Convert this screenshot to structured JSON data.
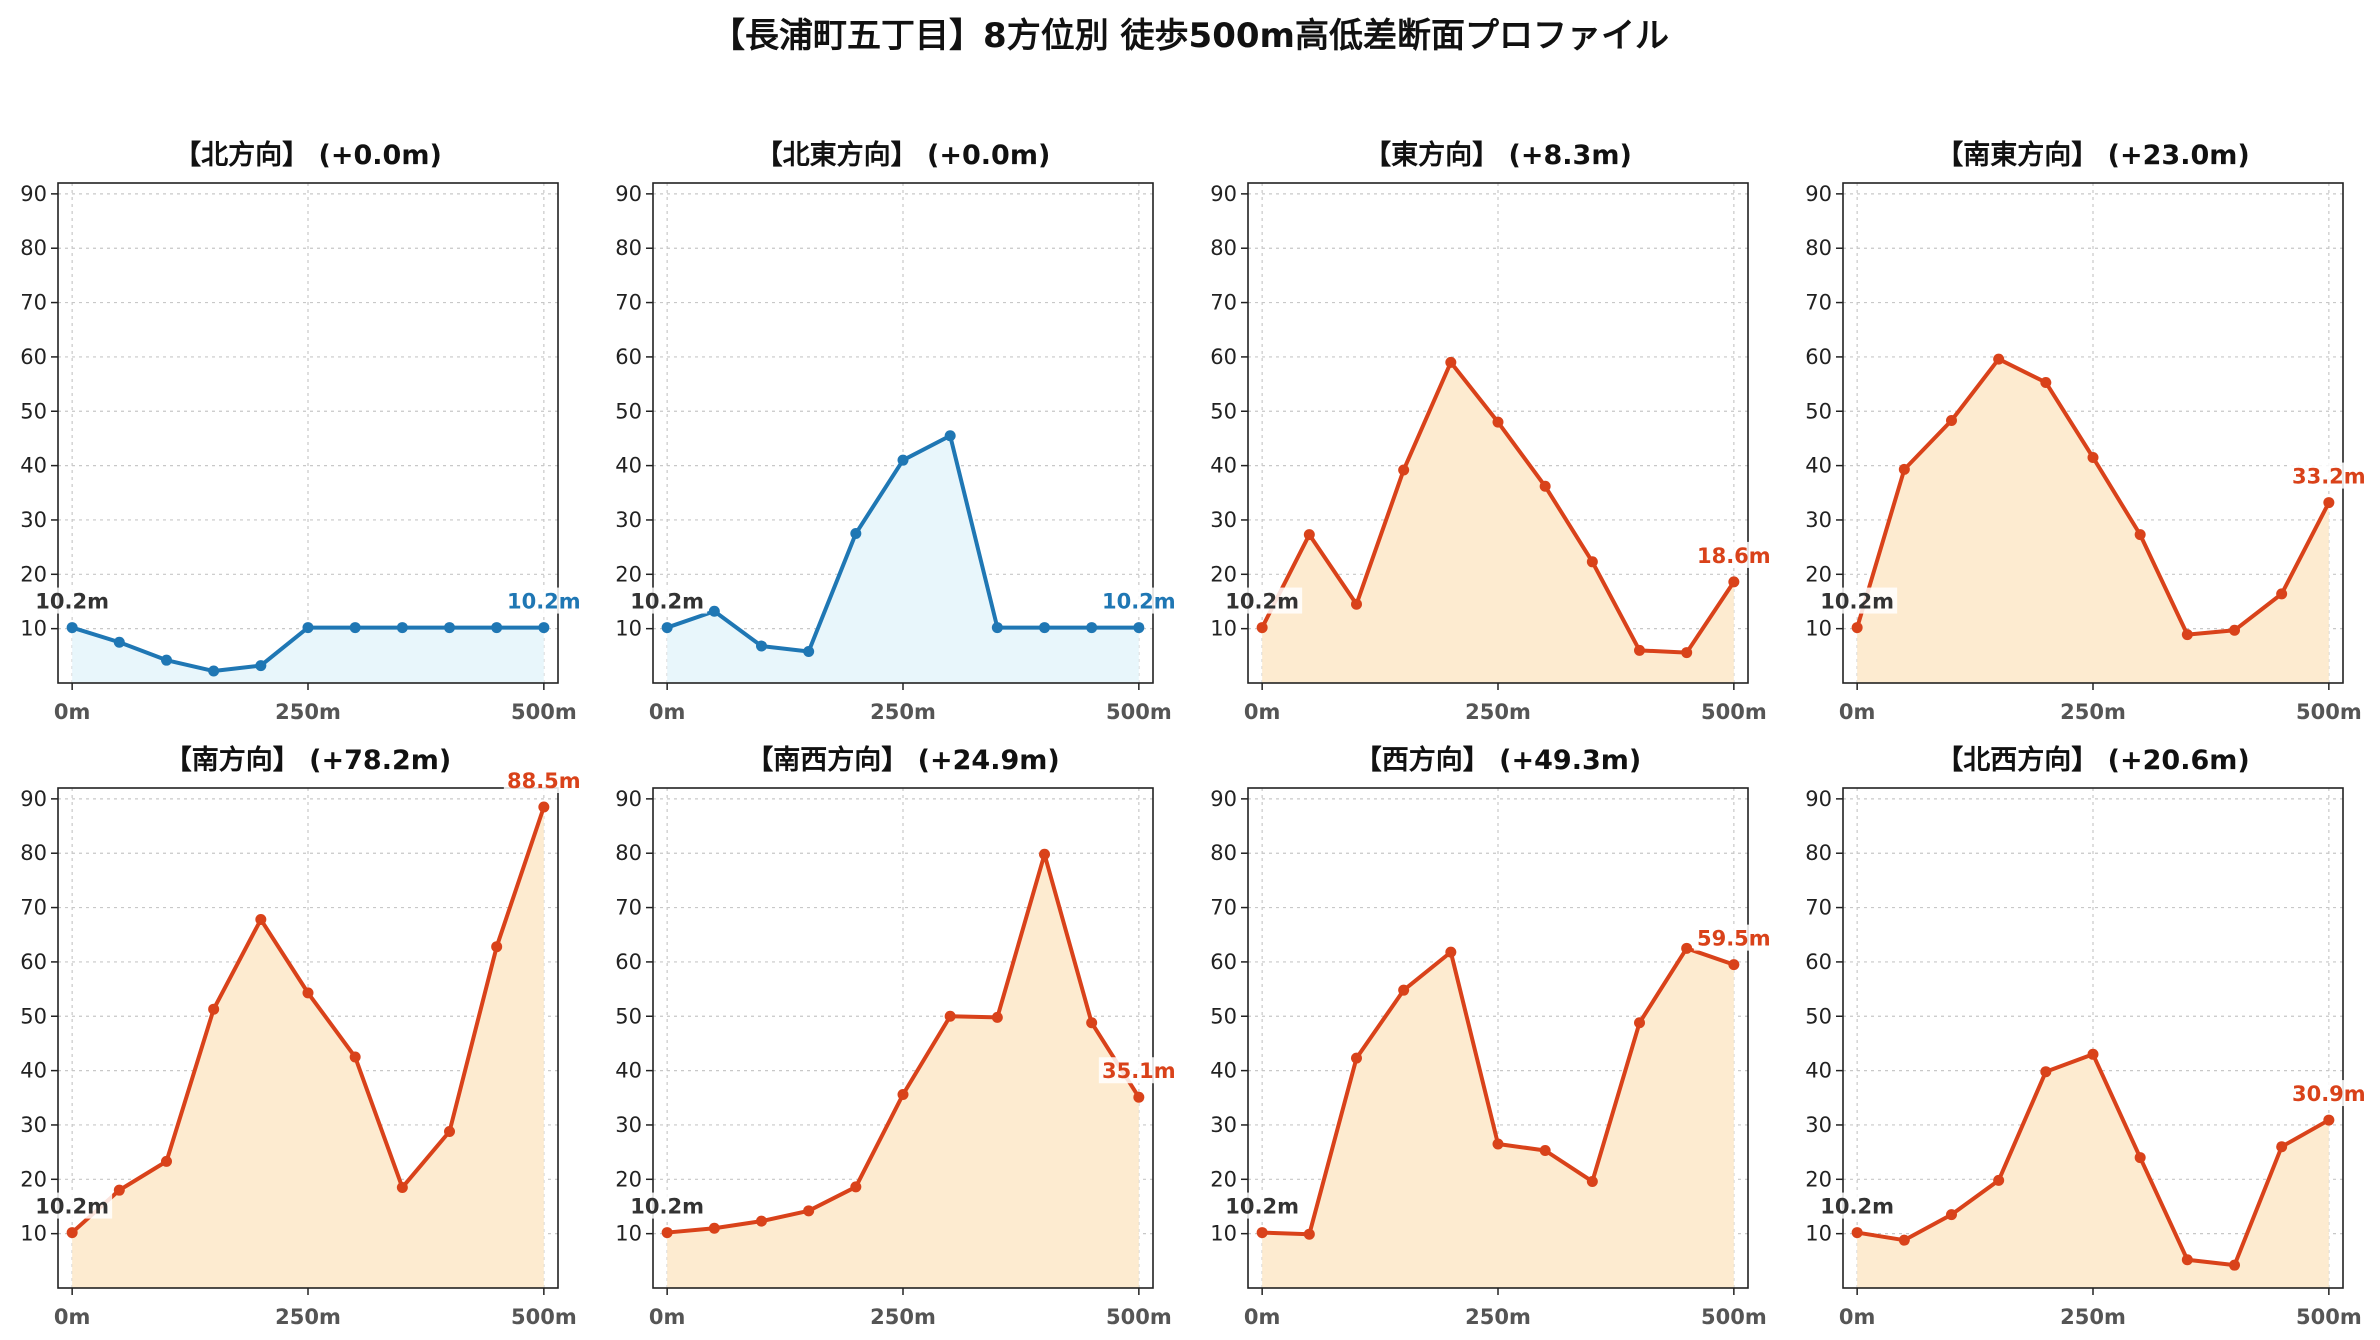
{
  "title": "【長浦町五丁目】8方位別 徒歩500m高低差断面プロファイル",
  "colors": {
    "flat_line": "#1f77b4",
    "flat_fill": "#e8f6fb",
    "rise_line": "#d9421a",
    "rise_fill": "#fdebd0",
    "start_label": "#333333"
  },
  "chart_data": [
    {
      "type": "area",
      "title": "【北方向】 (+0.0m)",
      "x": [
        0,
        50,
        100,
        150,
        200,
        250,
        300,
        350,
        400,
        450,
        500
      ],
      "values": [
        10.2,
        7.5,
        4.2,
        2.2,
        3.2,
        10.2,
        10.2,
        10.2,
        10.2,
        10.2,
        10.2
      ],
      "start_label": "10.2m",
      "end_label": "10.2m",
      "style": "flat",
      "xticks": [
        "0m",
        "250m",
        "500m"
      ],
      "yticks": [
        10,
        20,
        30,
        40,
        50,
        60,
        70,
        80,
        90
      ],
      "xlim": [
        -15,
        515
      ],
      "ylim": [
        0,
        92
      ],
      "grid": true
    },
    {
      "type": "area",
      "title": "【北東方向】 (+0.0m)",
      "x": [
        0,
        50,
        100,
        150,
        200,
        250,
        300,
        350,
        400,
        450,
        500
      ],
      "values": [
        10.2,
        13.2,
        6.8,
        5.8,
        27.5,
        41.0,
        45.5,
        10.2,
        10.2,
        10.2,
        10.2
      ],
      "start_label": "10.2m",
      "end_label": "10.2m",
      "style": "flat",
      "xticks": [
        "0m",
        "250m",
        "500m"
      ],
      "yticks": [
        10,
        20,
        30,
        40,
        50,
        60,
        70,
        80,
        90
      ],
      "xlim": [
        -15,
        515
      ],
      "ylim": [
        0,
        92
      ],
      "grid": true
    },
    {
      "type": "area",
      "title": "【東方向】 (+8.3m)",
      "x": [
        0,
        50,
        100,
        150,
        200,
        250,
        300,
        350,
        400,
        450,
        500
      ],
      "values": [
        10.2,
        27.3,
        14.5,
        39.2,
        59.0,
        48.0,
        36.2,
        22.3,
        6.0,
        5.6,
        18.6
      ],
      "start_label": "10.2m",
      "end_label": "18.6m",
      "style": "rise",
      "xticks": [
        "0m",
        "250m",
        "500m"
      ],
      "yticks": [
        10,
        20,
        30,
        40,
        50,
        60,
        70,
        80,
        90
      ],
      "xlim": [
        -15,
        515
      ],
      "ylim": [
        0,
        92
      ],
      "grid": true
    },
    {
      "type": "area",
      "title": "【南東方向】 (+23.0m)",
      "x": [
        0,
        50,
        100,
        150,
        200,
        250,
        300,
        350,
        400,
        450,
        500
      ],
      "values": [
        10.2,
        39.3,
        48.3,
        59.6,
        55.3,
        41.5,
        27.3,
        8.9,
        9.7,
        16.4,
        33.2
      ],
      "start_label": "10.2m",
      "end_label": "33.2m",
      "style": "rise",
      "xticks": [
        "0m",
        "250m",
        "500m"
      ],
      "yticks": [
        10,
        20,
        30,
        40,
        50,
        60,
        70,
        80,
        90
      ],
      "xlim": [
        -15,
        515
      ],
      "ylim": [
        0,
        92
      ],
      "grid": true
    },
    {
      "type": "area",
      "title": "【南方向】 (+78.2m)",
      "x": [
        0,
        50,
        100,
        150,
        200,
        250,
        300,
        350,
        400,
        450,
        500
      ],
      "values": [
        10.2,
        18.0,
        23.3,
        51.3,
        67.8,
        54.3,
        42.5,
        18.5,
        28.8,
        62.8,
        88.5
      ],
      "start_label": "10.2m",
      "end_label": "88.5m",
      "style": "rise",
      "xticks": [
        "0m",
        "250m",
        "500m"
      ],
      "yticks": [
        10,
        20,
        30,
        40,
        50,
        60,
        70,
        80,
        90
      ],
      "xlim": [
        -15,
        515
      ],
      "ylim": [
        0,
        92
      ],
      "grid": true
    },
    {
      "type": "area",
      "title": "【南西方向】 (+24.9m)",
      "x": [
        0,
        50,
        100,
        150,
        200,
        250,
        300,
        350,
        400,
        450,
        500
      ],
      "values": [
        10.2,
        11.0,
        12.3,
        14.2,
        18.6,
        35.6,
        50.0,
        49.8,
        79.8,
        48.8,
        35.1
      ],
      "start_label": "10.2m",
      "end_label": "35.1m",
      "style": "rise",
      "xticks": [
        "0m",
        "250m",
        "500m"
      ],
      "yticks": [
        10,
        20,
        30,
        40,
        50,
        60,
        70,
        80,
        90
      ],
      "xlim": [
        -15,
        515
      ],
      "ylim": [
        0,
        92
      ],
      "grid": true
    },
    {
      "type": "area",
      "title": "【西方向】 (+49.3m)",
      "x": [
        0,
        50,
        100,
        150,
        200,
        250,
        300,
        350,
        400,
        450,
        500
      ],
      "values": [
        10.2,
        9.9,
        42.3,
        54.8,
        61.8,
        26.5,
        25.3,
        19.6,
        48.8,
        62.5,
        59.5
      ],
      "start_label": "10.2m",
      "end_label": "59.5m",
      "style": "rise",
      "xticks": [
        "0m",
        "250m",
        "500m"
      ],
      "yticks": [
        10,
        20,
        30,
        40,
        50,
        60,
        70,
        80,
        90
      ],
      "xlim": [
        -15,
        515
      ],
      "ylim": [
        0,
        92
      ],
      "grid": true
    },
    {
      "type": "area",
      "title": "【北西方向】 (+20.6m)",
      "x": [
        0,
        50,
        100,
        150,
        200,
        250,
        300,
        350,
        400,
        450,
        500
      ],
      "values": [
        10.2,
        8.8,
        13.5,
        19.8,
        39.8,
        43.0,
        24.0,
        5.2,
        4.2,
        26.0,
        30.9
      ],
      "start_label": "10.2m",
      "end_label": "30.9m",
      "style": "rise",
      "xticks": [
        "0m",
        "250m",
        "500m"
      ],
      "yticks": [
        10,
        20,
        30,
        40,
        50,
        60,
        70,
        80,
        90
      ],
      "xlim": [
        -15,
        515
      ],
      "ylim": [
        0,
        92
      ],
      "grid": true
    }
  ]
}
